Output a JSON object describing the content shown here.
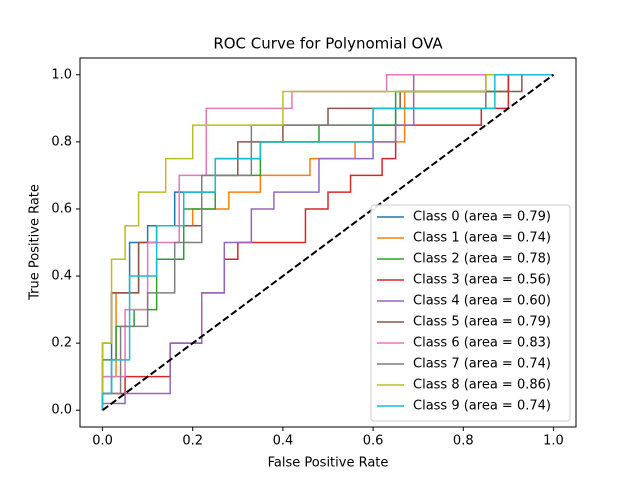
{
  "chart_data": {
    "type": "line",
    "title": "ROC Curve for Polynomial OVA",
    "x_label": "False Positive Rate",
    "y_label": "True Positive Rate",
    "xlim": [
      -0.05,
      1.05
    ],
    "ylim": [
      -0.05,
      1.05
    ],
    "xticks": [
      {
        "value": 0,
        "label": "0.0"
      },
      {
        "value": 0.2,
        "label": "0.2"
      },
      {
        "value": 0.4,
        "label": "0.4"
      },
      {
        "value": 0.6,
        "label": "0.6"
      },
      {
        "value": 0.8,
        "label": "0.8"
      },
      {
        "value": 1,
        "label": "1.0"
      }
    ],
    "yticks": [
      {
        "value": 0,
        "label": "0.0"
      },
      {
        "value": 0.2,
        "label": "0.2"
      },
      {
        "value": 0.4,
        "label": "0.4"
      },
      {
        "value": 0.6,
        "label": "0.6"
      },
      {
        "value": 0.8,
        "label": "0.8"
      },
      {
        "value": 1,
        "label": "1.0"
      }
    ],
    "grid": false,
    "legend": "lower right",
    "series": [
      {
        "name": "Class 0 (area = 0.79)",
        "color": "#1f77b4",
        "x": [
          0,
          0,
          0.02,
          0.02,
          0.06,
          0.06,
          0.1,
          0.1,
          0.16,
          0.16,
          0.25,
          0.25,
          0.35,
          0.35,
          0.6,
          0.6,
          0.65,
          0.65,
          0.85,
          0.85,
          1
        ],
        "values": [
          0,
          0.05,
          0.05,
          0.35,
          0.35,
          0.5,
          0.5,
          0.55,
          0.55,
          0.65,
          0.65,
          0.75,
          0.75,
          0.8,
          0.8,
          0.85,
          0.85,
          0.9,
          0.9,
          1,
          1
        ]
      },
      {
        "name": "Class 1 (area = 0.74)",
        "color": "#ff7f0e",
        "x": [
          0,
          0,
          0.03,
          0.03,
          0.08,
          0.08,
          0.12,
          0.12,
          0.2,
          0.2,
          0.28,
          0.28,
          0.35,
          0.35,
          0.46,
          0.46,
          0.56,
          0.56,
          0.67,
          0.67,
          0.9,
          0.9,
          1
        ],
        "values": [
          0,
          0.1,
          0.1,
          0.35,
          0.35,
          0.5,
          0.5,
          0.55,
          0.55,
          0.6,
          0.6,
          0.65,
          0.65,
          0.7,
          0.7,
          0.75,
          0.75,
          0.8,
          0.8,
          0.95,
          0.95,
          1,
          1
        ]
      },
      {
        "name": "Class 2 (area = 0.78)",
        "color": "#2ca02c",
        "x": [
          0,
          0,
          0.03,
          0.03,
          0.07,
          0.07,
          0.12,
          0.12,
          0.18,
          0.18,
          0.25,
          0.25,
          0.35,
          0.35,
          0.48,
          0.48,
          0.65,
          0.65,
          0.9,
          0.9,
          1
        ],
        "values": [
          0,
          0.15,
          0.15,
          0.25,
          0.25,
          0.3,
          0.3,
          0.45,
          0.45,
          0.6,
          0.6,
          0.7,
          0.7,
          0.8,
          0.8,
          0.85,
          0.85,
          0.95,
          0.95,
          1,
          1
        ]
      },
      {
        "name": "Class 3 (area = 0.56)",
        "color": "#d62728",
        "x": [
          0,
          0,
          0.05,
          0.05,
          0.15,
          0.15,
          0.22,
          0.22,
          0.27,
          0.27,
          0.3,
          0.3,
          0.45,
          0.45,
          0.5,
          0.5,
          0.55,
          0.55,
          0.62,
          0.62,
          0.65,
          0.65,
          0.84,
          0.84,
          0.9,
          0.9,
          1
        ],
        "values": [
          0,
          0.05,
          0.05,
          0.1,
          0.1,
          0.2,
          0.2,
          0.35,
          0.35,
          0.45,
          0.45,
          0.5,
          0.5,
          0.6,
          0.6,
          0.65,
          0.65,
          0.7,
          0.7,
          0.75,
          0.75,
          0.85,
          0.85,
          0.9,
          0.9,
          1,
          1
        ]
      },
      {
        "name": "Class 4 (area = 0.60)",
        "color": "#9467bd",
        "x": [
          0,
          0,
          0.05,
          0.05,
          0.15,
          0.15,
          0.22,
          0.22,
          0.27,
          0.27,
          0.33,
          0.33,
          0.38,
          0.38,
          0.48,
          0.48,
          0.6,
          0.6,
          0.65,
          0.65,
          0.69,
          0.69,
          1
        ],
        "values": [
          0,
          0.02,
          0.02,
          0.05,
          0.05,
          0.2,
          0.2,
          0.35,
          0.35,
          0.5,
          0.5,
          0.6,
          0.6,
          0.65,
          0.65,
          0.75,
          0.75,
          0.8,
          0.8,
          0.85,
          0.85,
          1,
          1
        ]
      },
      {
        "name": "Class 5 (area = 0.79)",
        "color": "#8c564b",
        "x": [
          0,
          0,
          0.02,
          0.02,
          0.08,
          0.08,
          0.12,
          0.12,
          0.22,
          0.22,
          0.3,
          0.3,
          0.4,
          0.4,
          0.5,
          0.5,
          0.66,
          0.66,
          0.93,
          0.93,
          1
        ],
        "values": [
          0,
          0.2,
          0.2,
          0.35,
          0.35,
          0.5,
          0.5,
          0.55,
          0.55,
          0.7,
          0.7,
          0.8,
          0.8,
          0.85,
          0.85,
          0.9,
          0.9,
          0.95,
          0.95,
          1,
          1
        ]
      },
      {
        "name": "Class 6 (area = 0.83)",
        "color": "#e377c2",
        "x": [
          0,
          0,
          0.05,
          0.05,
          0.1,
          0.1,
          0.17,
          0.17,
          0.23,
          0.23,
          0.42,
          0.42,
          0.63,
          0.63,
          1
        ],
        "values": [
          0,
          0.1,
          0.1,
          0.3,
          0.3,
          0.5,
          0.5,
          0.7,
          0.7,
          0.9,
          0.9,
          0.95,
          0.95,
          1,
          1
        ]
      },
      {
        "name": "Class 7 (area = 0.74)",
        "color": "#7f7f7f",
        "x": [
          0,
          0,
          0.04,
          0.04,
          0.1,
          0.1,
          0.16,
          0.16,
          0.22,
          0.22,
          0.33,
          0.33,
          0.6,
          0.6,
          0.85,
          0.85,
          1
        ],
        "values": [
          0,
          0.05,
          0.05,
          0.25,
          0.25,
          0.35,
          0.35,
          0.5,
          0.5,
          0.7,
          0.7,
          0.85,
          0.85,
          0.9,
          0.9,
          1,
          1
        ]
      },
      {
        "name": "Class 8 (area = 0.86)",
        "color": "#bcbd22",
        "x": [
          0,
          0,
          0.02,
          0.02,
          0.05,
          0.05,
          0.08,
          0.08,
          0.14,
          0.14,
          0.2,
          0.2,
          0.4,
          0.4,
          0.85,
          0.85,
          1
        ],
        "values": [
          0,
          0.2,
          0.2,
          0.45,
          0.45,
          0.55,
          0.55,
          0.65,
          0.65,
          0.75,
          0.75,
          0.85,
          0.85,
          0.95,
          0.95,
          1,
          1
        ]
      },
      {
        "name": "Class 9 (area = 0.74)",
        "color": "#17becf",
        "x": [
          0,
          0,
          0.02,
          0.02,
          0.06,
          0.06,
          0.12,
          0.12,
          0.18,
          0.18,
          0.25,
          0.25,
          0.35,
          0.35,
          0.6,
          0.6,
          0.87,
          0.87,
          1
        ],
        "values": [
          0,
          0.05,
          0.05,
          0.15,
          0.15,
          0.4,
          0.4,
          0.55,
          0.55,
          0.65,
          0.65,
          0.75,
          0.75,
          0.8,
          0.8,
          0.9,
          0.9,
          1,
          1
        ]
      },
      {
        "color": "#000000",
        "dash": true,
        "x": [
          0,
          1
        ],
        "values": [
          0,
          1
        ]
      }
    ]
  }
}
